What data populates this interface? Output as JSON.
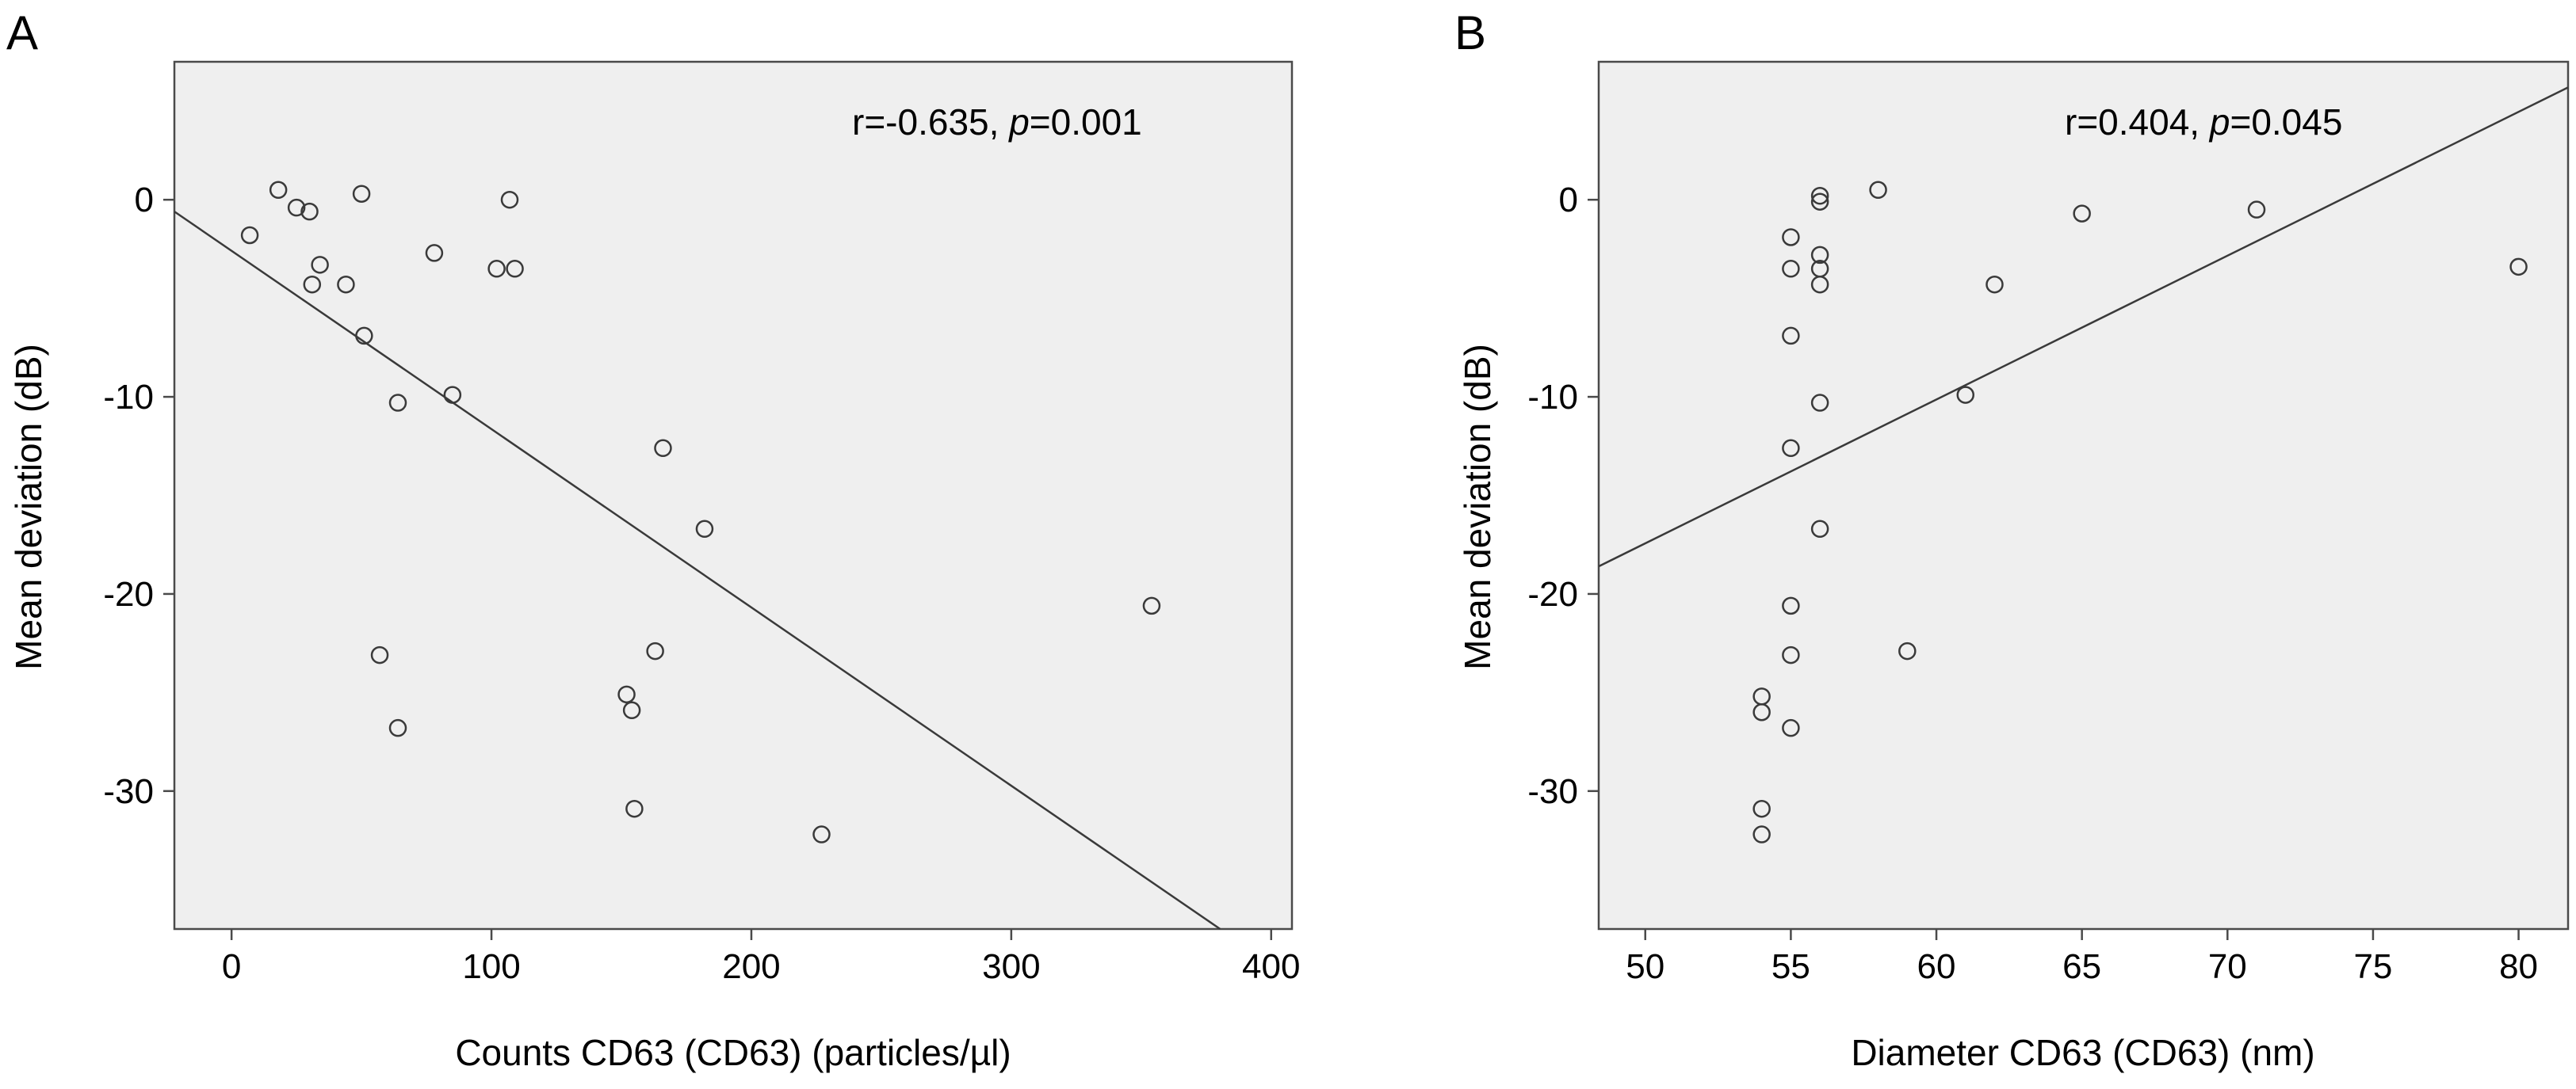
{
  "figure": {
    "panel_labels": [
      "A",
      "B"
    ]
  },
  "chart_data": [
    {
      "type": "scatter",
      "panel": "A",
      "xlabel": "Counts CD63 (CD63) (particles/µl)",
      "ylabel": "Mean deviation (dB)",
      "xlim": [
        -22,
        408
      ],
      "ylim": [
        -37,
        7
      ],
      "xticks": [
        0,
        100,
        200,
        300,
        400
      ],
      "yticks": [
        0,
        -10,
        -20,
        -30
      ],
      "grid": false,
      "annotation": {
        "r_text": "r=-0.635, ",
        "p_symbol": "p",
        "p_text": "=0.001"
      },
      "points": [
        {
          "x": 7,
          "y": -1.8
        },
        {
          "x": 18,
          "y": 0.5
        },
        {
          "x": 25,
          "y": -0.4
        },
        {
          "x": 30,
          "y": -0.6
        },
        {
          "x": 31,
          "y": -4.3
        },
        {
          "x": 34,
          "y": -3.3
        },
        {
          "x": 44,
          "y": -4.3
        },
        {
          "x": 50,
          "y": 0.3
        },
        {
          "x": 51,
          "y": -6.9
        },
        {
          "x": 64,
          "y": -10.3
        },
        {
          "x": 57,
          "y": -23.1
        },
        {
          "x": 64,
          "y": -26.8
        },
        {
          "x": 78,
          "y": -2.7
        },
        {
          "x": 85,
          "y": -9.9
        },
        {
          "x": 102,
          "y": -3.5
        },
        {
          "x": 107,
          "y": 0
        },
        {
          "x": 109,
          "y": -3.5
        },
        {
          "x": 152,
          "y": -25.1
        },
        {
          "x": 154,
          "y": -25.9
        },
        {
          "x": 155,
          "y": -30.9
        },
        {
          "x": 163,
          "y": -22.9
        },
        {
          "x": 166,
          "y": -12.6
        },
        {
          "x": 182,
          "y": -16.7
        },
        {
          "x": 227,
          "y": -32.2
        },
        {
          "x": 354,
          "y": -20.6
        }
      ],
      "fit_line": {
        "x": [
          -22,
          408
        ],
        "y": [
          -0.6,
          -39.5
        ]
      }
    },
    {
      "type": "scatter",
      "panel": "B",
      "xlabel": "Diameter CD63 (CD63) (nm)",
      "ylabel": "Mean deviation (dB)",
      "xlim": [
        48.4,
        81.7
      ],
      "ylim": [
        -37,
        7
      ],
      "xticks": [
        50,
        55,
        60,
        65,
        70,
        75,
        80
      ],
      "yticks": [
        0,
        -10,
        -20,
        -30
      ],
      "grid": false,
      "annotation": {
        "r_text": "r=0.404, ",
        "p_symbol": "p",
        "p_text": "=0.045"
      },
      "points": [
        {
          "x": 54,
          "y": -25.2
        },
        {
          "x": 54,
          "y": -26.0
        },
        {
          "x": 54,
          "y": -30.9
        },
        {
          "x": 54,
          "y": -32.2
        },
        {
          "x": 55,
          "y": -1.9
        },
        {
          "x": 55,
          "y": -3.5
        },
        {
          "x": 55,
          "y": -6.9
        },
        {
          "x": 55,
          "y": -12.6
        },
        {
          "x": 55,
          "y": -20.6
        },
        {
          "x": 55,
          "y": -23.1
        },
        {
          "x": 55,
          "y": -26.8
        },
        {
          "x": 56,
          "y": 0.2
        },
        {
          "x": 56,
          "y": -0.1
        },
        {
          "x": 56,
          "y": -2.8
        },
        {
          "x": 56,
          "y": -3.5
        },
        {
          "x": 56,
          "y": -4.3
        },
        {
          "x": 56,
          "y": -10.3
        },
        {
          "x": 56,
          "y": -16.7
        },
        {
          "x": 58,
          "y": 0.5
        },
        {
          "x": 59,
          "y": -22.9
        },
        {
          "x": 61,
          "y": -9.9
        },
        {
          "x": 62,
          "y": -4.3
        },
        {
          "x": 65,
          "y": -0.7
        },
        {
          "x": 71,
          "y": -0.5
        },
        {
          "x": 80,
          "y": -3.4
        }
      ],
      "fit_line": {
        "x": [
          48.4,
          81.7
        ],
        "y": [
          -18.6,
          5.7
        ]
      }
    }
  ]
}
